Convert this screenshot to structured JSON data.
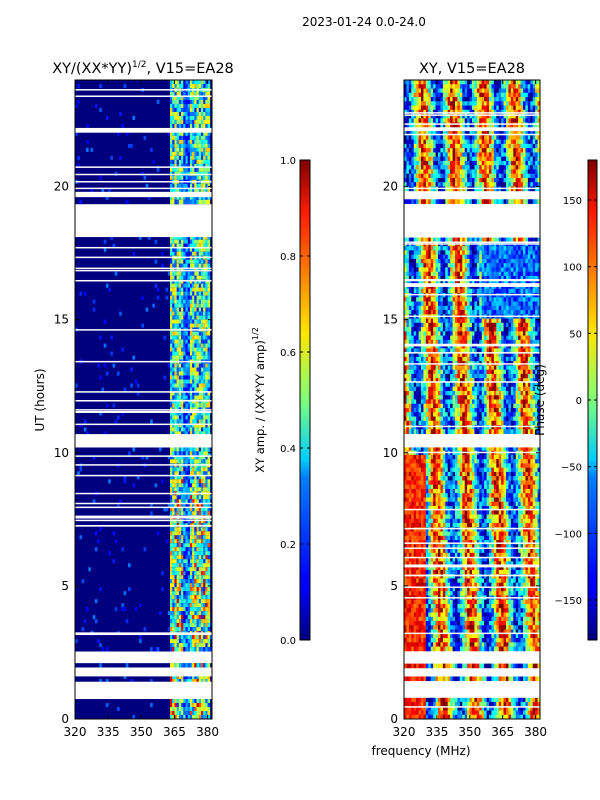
{
  "figure_title": "2023-01-24 0.0-24.0",
  "chart_data": [
    {
      "type": "heatmap",
      "title_base": "XY/(XX*YY)",
      "title_exp": "1/2",
      "title_tail": ", V15=EA28",
      "xlabel": "",
      "ylabel": "UT (hours)",
      "xlim": [
        320,
        382
      ],
      "ylim": [
        0,
        24
      ],
      "xticks": [
        320,
        335,
        350,
        365,
        380
      ],
      "yticks": [
        0,
        5,
        10,
        15,
        20
      ],
      "gaps_hours": [
        [
          0.8,
          1.4
        ],
        [
          1.6,
          1.9
        ],
        [
          2.1,
          2.5
        ],
        [
          10.2,
          10.7
        ],
        [
          18.1,
          19.3
        ],
        [
          19.6,
          19.8
        ],
        [
          22.1,
          22.2
        ]
      ],
      "colorbar": {
        "label_base": "XY amp. / (XX*YY amp)",
        "label_exp": "1/2",
        "range": [
          0,
          1
        ],
        "ticks": [
          "0.0",
          "0.2",
          "0.4",
          "0.6",
          "0.8",
          "1.0"
        ]
      }
    },
    {
      "type": "heatmap",
      "title": "XY, V15=EA28",
      "xlabel": "frequency (MHz)",
      "ylabel": "",
      "xlim": [
        320,
        382
      ],
      "ylim": [
        0,
        24
      ],
      "xticks": [
        320,
        335,
        350,
        365,
        380
      ],
      "yticks": [
        0,
        5,
        10,
        15,
        20
      ],
      "gaps_hours": [
        [
          0.8,
          1.4
        ],
        [
          1.6,
          1.9
        ],
        [
          2.1,
          2.5
        ],
        [
          10.2,
          10.7
        ],
        [
          18.1,
          19.3
        ],
        [
          19.6,
          19.8
        ],
        [
          22.1,
          22.2
        ]
      ],
      "colorbar": {
        "label": "Phase (deg)",
        "range": [
          -180,
          180
        ],
        "ticks": [
          -150,
          -100,
          -50,
          0,
          50,
          100,
          150
        ]
      }
    }
  ]
}
